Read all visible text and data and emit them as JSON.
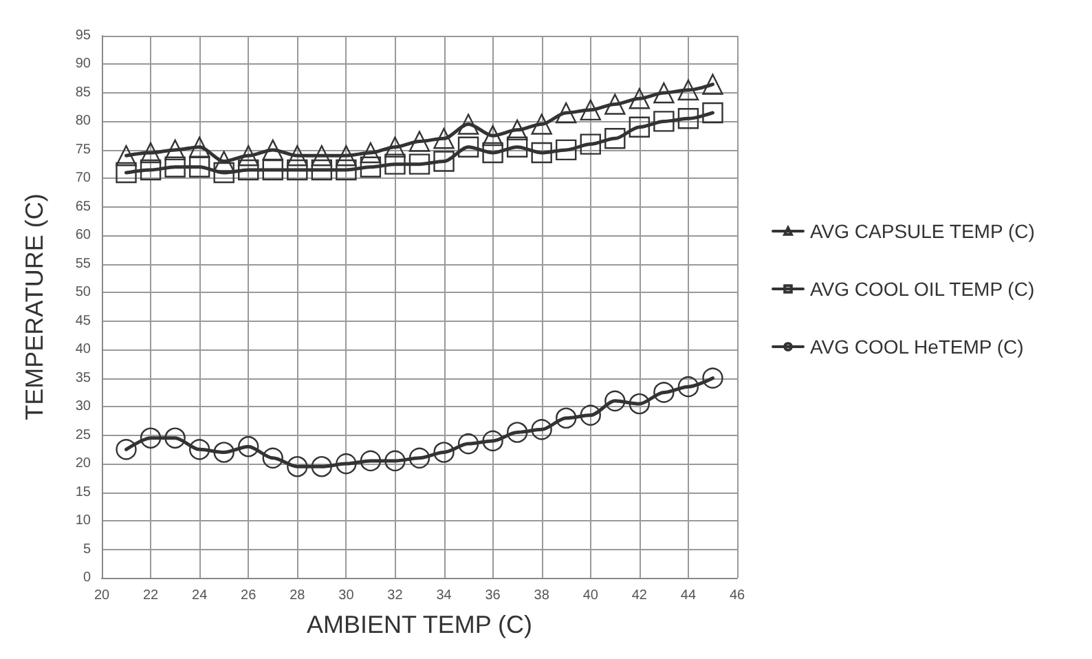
{
  "chart_data": {
    "type": "line",
    "xlabel": "AMBIENT TEMP (C)",
    "ylabel": "TEMPERATURE (C)",
    "x": [
      21,
      22,
      23,
      24,
      25,
      26,
      27,
      28,
      29,
      30,
      31,
      32,
      33,
      34,
      35,
      36,
      37,
      38,
      39,
      40,
      41,
      42,
      43,
      44,
      45
    ],
    "series": [
      {
        "name": "AVG CAPSULE TEMP (C)",
        "color": "#333333",
        "marker": "triangle",
        "values": [
          74,
          74.5,
          75,
          75.5,
          73,
          74,
          75,
          74,
          74,
          74,
          74.5,
          75.5,
          76.5,
          77,
          79.5,
          77.5,
          78.5,
          79.5,
          81.5,
          82,
          83,
          84,
          85,
          85.5,
          86.5
        ]
      },
      {
        "name": "AVG COOL OIL TEMP (C)",
        "color": "#333333",
        "marker": "square",
        "values": [
          71,
          71.5,
          72,
          72,
          71,
          71.5,
          71.5,
          71.5,
          71.5,
          71.5,
          72,
          72.5,
          72.5,
          73,
          75.5,
          74.5,
          75.5,
          74.5,
          75,
          76,
          77,
          79,
          80,
          80.5,
          81.5
        ]
      },
      {
        "name": "AVG COOL HeTEMP (C)",
        "color": "#333333",
        "marker": "circle",
        "values": [
          22.5,
          24.5,
          24.5,
          22.5,
          22,
          23,
          21,
          19.5,
          19.5,
          20,
          20.5,
          20.5,
          21,
          22,
          23.5,
          24,
          25.5,
          26,
          28,
          28.5,
          31,
          30.5,
          32.5,
          33.5,
          35
        ]
      }
    ],
    "xlim": [
      20,
      46
    ],
    "xticks": [
      20,
      22,
      24,
      26,
      28,
      30,
      32,
      34,
      36,
      38,
      40,
      42,
      44,
      46
    ],
    "ylim": [
      0,
      95
    ],
    "yticks": [
      0,
      5,
      10,
      15,
      20,
      25,
      30,
      35,
      40,
      45,
      50,
      55,
      60,
      65,
      70,
      75,
      80,
      85,
      90,
      95
    ],
    "grid": true,
    "legend": "right",
    "line_style": "solid"
  }
}
